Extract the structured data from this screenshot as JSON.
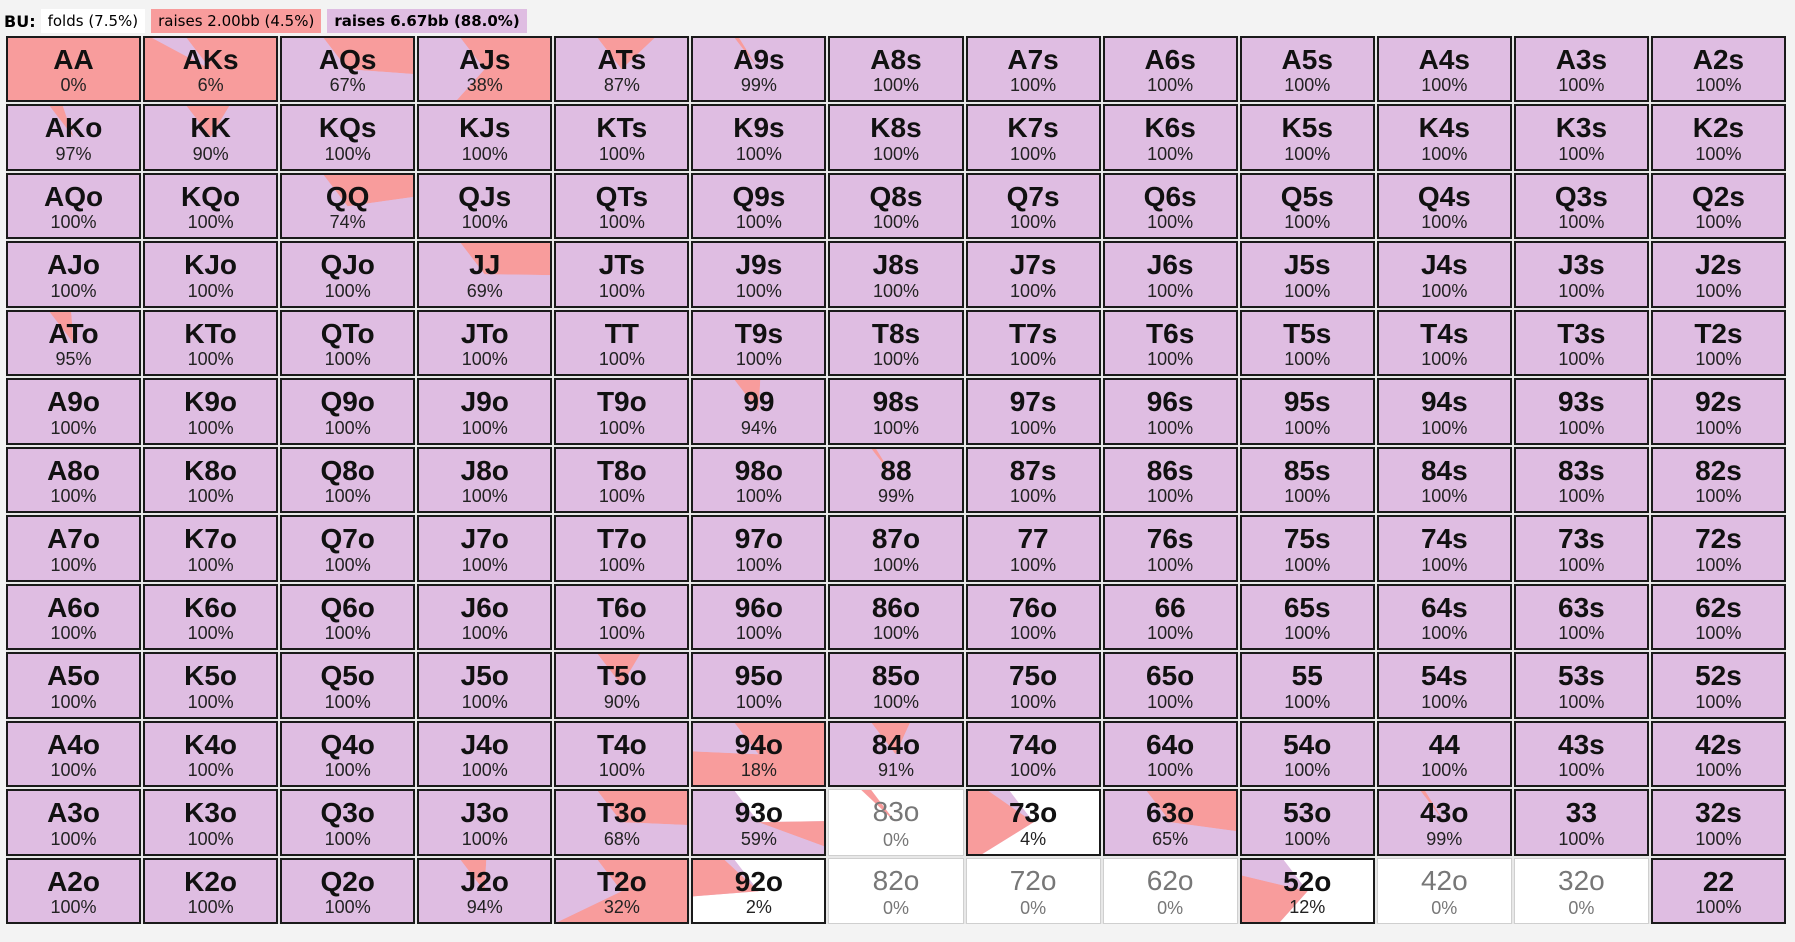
{
  "legend": {
    "position": "BU:",
    "actions": [
      {
        "label": "folds (7.5%)",
        "color": "#ffffff"
      },
      {
        "label": "raises 2.00bb (4.5%)",
        "color": "#f89c9c"
      },
      {
        "label": "raises 6.67bb (88.0%)",
        "color": "#dfbde2"
      }
    ]
  },
  "colors": {
    "fold": "#ffffff",
    "raise_small": "#f89c9c",
    "raise_big": "#dfbde2"
  },
  "rows": [
    [
      {
        "hand": "AA",
        "pct": "0%"
      },
      {
        "hand": "AKs",
        "pct": "6%"
      },
      {
        "hand": "AQs",
        "pct": "67%"
      },
      {
        "hand": "AJs",
        "pct": "38%"
      },
      {
        "hand": "ATs",
        "pct": "87%"
      },
      {
        "hand": "A9s",
        "pct": "99%"
      },
      {
        "hand": "A8s",
        "pct": "100%"
      },
      {
        "hand": "A7s",
        "pct": "100%"
      },
      {
        "hand": "A6s",
        "pct": "100%"
      },
      {
        "hand": "A5s",
        "pct": "100%"
      },
      {
        "hand": "A4s",
        "pct": "100%"
      },
      {
        "hand": "A3s",
        "pct": "100%"
      },
      {
        "hand": "A2s",
        "pct": "100%"
      }
    ],
    [
      {
        "hand": "AKo",
        "pct": "97%"
      },
      {
        "hand": "KK",
        "pct": "90%"
      },
      {
        "hand": "KQs",
        "pct": "100%"
      },
      {
        "hand": "KJs",
        "pct": "100%"
      },
      {
        "hand": "KTs",
        "pct": "100%"
      },
      {
        "hand": "K9s",
        "pct": "100%"
      },
      {
        "hand": "K8s",
        "pct": "100%"
      },
      {
        "hand": "K7s",
        "pct": "100%"
      },
      {
        "hand": "K6s",
        "pct": "100%"
      },
      {
        "hand": "K5s",
        "pct": "100%"
      },
      {
        "hand": "K4s",
        "pct": "100%"
      },
      {
        "hand": "K3s",
        "pct": "100%"
      },
      {
        "hand": "K2s",
        "pct": "100%"
      }
    ],
    [
      {
        "hand": "AQo",
        "pct": "100%"
      },
      {
        "hand": "KQo",
        "pct": "100%"
      },
      {
        "hand": "QQ",
        "pct": "74%"
      },
      {
        "hand": "QJs",
        "pct": "100%"
      },
      {
        "hand": "QTs",
        "pct": "100%"
      },
      {
        "hand": "Q9s",
        "pct": "100%"
      },
      {
        "hand": "Q8s",
        "pct": "100%"
      },
      {
        "hand": "Q7s",
        "pct": "100%"
      },
      {
        "hand": "Q6s",
        "pct": "100%"
      },
      {
        "hand": "Q5s",
        "pct": "100%"
      },
      {
        "hand": "Q4s",
        "pct": "100%"
      },
      {
        "hand": "Q3s",
        "pct": "100%"
      },
      {
        "hand": "Q2s",
        "pct": "100%"
      }
    ],
    [
      {
        "hand": "AJo",
        "pct": "100%"
      },
      {
        "hand": "KJo",
        "pct": "100%"
      },
      {
        "hand": "QJo",
        "pct": "100%"
      },
      {
        "hand": "JJ",
        "pct": "69%"
      },
      {
        "hand": "JTs",
        "pct": "100%"
      },
      {
        "hand": "J9s",
        "pct": "100%"
      },
      {
        "hand": "J8s",
        "pct": "100%"
      },
      {
        "hand": "J7s",
        "pct": "100%"
      },
      {
        "hand": "J6s",
        "pct": "100%"
      },
      {
        "hand": "J5s",
        "pct": "100%"
      },
      {
        "hand": "J4s",
        "pct": "100%"
      },
      {
        "hand": "J3s",
        "pct": "100%"
      },
      {
        "hand": "J2s",
        "pct": "100%"
      }
    ],
    [
      {
        "hand": "ATo",
        "pct": "95%"
      },
      {
        "hand": "KTo",
        "pct": "100%"
      },
      {
        "hand": "QTo",
        "pct": "100%"
      },
      {
        "hand": "JTo",
        "pct": "100%"
      },
      {
        "hand": "TT",
        "pct": "100%"
      },
      {
        "hand": "T9s",
        "pct": "100%"
      },
      {
        "hand": "T8s",
        "pct": "100%"
      },
      {
        "hand": "T7s",
        "pct": "100%"
      },
      {
        "hand": "T6s",
        "pct": "100%"
      },
      {
        "hand": "T5s",
        "pct": "100%"
      },
      {
        "hand": "T4s",
        "pct": "100%"
      },
      {
        "hand": "T3s",
        "pct": "100%"
      },
      {
        "hand": "T2s",
        "pct": "100%"
      }
    ],
    [
      {
        "hand": "A9o",
        "pct": "100%"
      },
      {
        "hand": "K9o",
        "pct": "100%"
      },
      {
        "hand": "Q9o",
        "pct": "100%"
      },
      {
        "hand": "J9o",
        "pct": "100%"
      },
      {
        "hand": "T9o",
        "pct": "100%"
      },
      {
        "hand": "99",
        "pct": "94%"
      },
      {
        "hand": "98s",
        "pct": "100%"
      },
      {
        "hand": "97s",
        "pct": "100%"
      },
      {
        "hand": "96s",
        "pct": "100%"
      },
      {
        "hand": "95s",
        "pct": "100%"
      },
      {
        "hand": "94s",
        "pct": "100%"
      },
      {
        "hand": "93s",
        "pct": "100%"
      },
      {
        "hand": "92s",
        "pct": "100%"
      }
    ],
    [
      {
        "hand": "A8o",
        "pct": "100%"
      },
      {
        "hand": "K8o",
        "pct": "100%"
      },
      {
        "hand": "Q8o",
        "pct": "100%"
      },
      {
        "hand": "J8o",
        "pct": "100%"
      },
      {
        "hand": "T8o",
        "pct": "100%"
      },
      {
        "hand": "98o",
        "pct": "100%"
      },
      {
        "hand": "88",
        "pct": "99%"
      },
      {
        "hand": "87s",
        "pct": "100%"
      },
      {
        "hand": "86s",
        "pct": "100%"
      },
      {
        "hand": "85s",
        "pct": "100%"
      },
      {
        "hand": "84s",
        "pct": "100%"
      },
      {
        "hand": "83s",
        "pct": "100%"
      },
      {
        "hand": "82s",
        "pct": "100%"
      }
    ],
    [
      {
        "hand": "A7o",
        "pct": "100%"
      },
      {
        "hand": "K7o",
        "pct": "100%"
      },
      {
        "hand": "Q7o",
        "pct": "100%"
      },
      {
        "hand": "J7o",
        "pct": "100%"
      },
      {
        "hand": "T7o",
        "pct": "100%"
      },
      {
        "hand": "97o",
        "pct": "100%"
      },
      {
        "hand": "87o",
        "pct": "100%"
      },
      {
        "hand": "77",
        "pct": "100%"
      },
      {
        "hand": "76s",
        "pct": "100%"
      },
      {
        "hand": "75s",
        "pct": "100%"
      },
      {
        "hand": "74s",
        "pct": "100%"
      },
      {
        "hand": "73s",
        "pct": "100%"
      },
      {
        "hand": "72s",
        "pct": "100%"
      }
    ],
    [
      {
        "hand": "A6o",
        "pct": "100%"
      },
      {
        "hand": "K6o",
        "pct": "100%"
      },
      {
        "hand": "Q6o",
        "pct": "100%"
      },
      {
        "hand": "J6o",
        "pct": "100%"
      },
      {
        "hand": "T6o",
        "pct": "100%"
      },
      {
        "hand": "96o",
        "pct": "100%"
      },
      {
        "hand": "86o",
        "pct": "100%"
      },
      {
        "hand": "76o",
        "pct": "100%"
      },
      {
        "hand": "66",
        "pct": "100%"
      },
      {
        "hand": "65s",
        "pct": "100%"
      },
      {
        "hand": "64s",
        "pct": "100%"
      },
      {
        "hand": "63s",
        "pct": "100%"
      },
      {
        "hand": "62s",
        "pct": "100%"
      }
    ],
    [
      {
        "hand": "A5o",
        "pct": "100%"
      },
      {
        "hand": "K5o",
        "pct": "100%"
      },
      {
        "hand": "Q5o",
        "pct": "100%"
      },
      {
        "hand": "J5o",
        "pct": "100%"
      },
      {
        "hand": "T5o",
        "pct": "90%"
      },
      {
        "hand": "95o",
        "pct": "100%"
      },
      {
        "hand": "85o",
        "pct": "100%"
      },
      {
        "hand": "75o",
        "pct": "100%"
      },
      {
        "hand": "65o",
        "pct": "100%"
      },
      {
        "hand": "55",
        "pct": "100%"
      },
      {
        "hand": "54s",
        "pct": "100%"
      },
      {
        "hand": "53s",
        "pct": "100%"
      },
      {
        "hand": "52s",
        "pct": "100%"
      }
    ],
    [
      {
        "hand": "A4o",
        "pct": "100%"
      },
      {
        "hand": "K4o",
        "pct": "100%"
      },
      {
        "hand": "Q4o",
        "pct": "100%"
      },
      {
        "hand": "J4o",
        "pct": "100%"
      },
      {
        "hand": "T4o",
        "pct": "100%"
      },
      {
        "hand": "94o",
        "pct": "18%"
      },
      {
        "hand": "84o",
        "pct": "91%"
      },
      {
        "hand": "74o",
        "pct": "100%"
      },
      {
        "hand": "64o",
        "pct": "100%"
      },
      {
        "hand": "54o",
        "pct": "100%"
      },
      {
        "hand": "44",
        "pct": "100%"
      },
      {
        "hand": "43s",
        "pct": "100%"
      },
      {
        "hand": "42s",
        "pct": "100%"
      }
    ],
    [
      {
        "hand": "A3o",
        "pct": "100%"
      },
      {
        "hand": "K3o",
        "pct": "100%"
      },
      {
        "hand": "Q3o",
        "pct": "100%"
      },
      {
        "hand": "J3o",
        "pct": "100%"
      },
      {
        "hand": "T3o",
        "pct": "68%"
      },
      {
        "hand": "93o",
        "pct": "59%"
      },
      {
        "hand": "83o",
        "pct": "0%"
      },
      {
        "hand": "73o",
        "pct": "4%"
      },
      {
        "hand": "63o",
        "pct": "65%"
      },
      {
        "hand": "53o",
        "pct": "100%"
      },
      {
        "hand": "43o",
        "pct": "99%"
      },
      {
        "hand": "33",
        "pct": "100%"
      },
      {
        "hand": "32s",
        "pct": "100%"
      }
    ],
    [
      {
        "hand": "A2o",
        "pct": "100%"
      },
      {
        "hand": "K2o",
        "pct": "100%"
      },
      {
        "hand": "Q2o",
        "pct": "100%"
      },
      {
        "hand": "J2o",
        "pct": "94%"
      },
      {
        "hand": "T2o",
        "pct": "32%"
      },
      {
        "hand": "92o",
        "pct": "2%"
      },
      {
        "hand": "82o",
        "pct": "0%"
      },
      {
        "hand": "72o",
        "pct": "0%"
      },
      {
        "hand": "62o",
        "pct": "0%"
      },
      {
        "hand": "52o",
        "pct": "12%"
      },
      {
        "hand": "42o",
        "pct": "0%"
      },
      {
        "hand": "32o",
        "pct": "0%"
      },
      {
        "hand": "22",
        "pct": "100%"
      }
    ]
  ],
  "mixes": {
    "AA": [
      0,
      1.0,
      0
    ],
    "AKs": [
      0,
      0.94,
      0.06
    ],
    "AQs": [
      0,
      0.33,
      0.67
    ],
    "AJs": [
      0,
      0.62,
      0.38
    ],
    "ATs": [
      0,
      0.13,
      0.87
    ],
    "A9s": [
      0,
      0.01,
      0.99
    ],
    "AKo": [
      0,
      0.03,
      0.97
    ],
    "KK": [
      0,
      0.1,
      0.9
    ],
    "QQ": [
      0,
      0.26,
      0.74
    ],
    "JJ": [
      0,
      0.31,
      0.69
    ],
    "ATo": [
      0,
      0.05,
      0.95
    ],
    "99": [
      0,
      0.06,
      0.94
    ],
    "88": [
      0,
      0.01,
      0.99
    ],
    "T5o": [
      0,
      0.1,
      0.9
    ],
    "94o": [
      0,
      0.82,
      0.18
    ],
    "84o": [
      0,
      0.09,
      0.91
    ],
    "T3o": [
      0,
      0.32,
      0.68
    ],
    "93o": [
      0.3,
      0.11,
      0.59
    ],
    "83o": [
      0.98,
      0.02,
      0
    ],
    "73o": [
      0.66,
      0.3,
      0.04
    ],
    "63o": [
      0,
      0.35,
      0.65
    ],
    "43o": [
      0,
      0.01,
      0.99
    ],
    "J2o": [
      0,
      0.06,
      0.94
    ],
    "T2o": [
      0,
      0.68,
      0.32
    ],
    "92o": [
      0.78,
      0.2,
      0.02
    ],
    "82o": [
      1,
      0,
      0
    ],
    "72o": [
      1,
      0,
      0
    ],
    "62o": [
      1,
      0,
      0
    ],
    "52o": [
      0.62,
      0.26,
      0.12
    ],
    "42o": [
      1,
      0,
      0
    ],
    "32o": [
      1,
      0,
      0
    ]
  }
}
